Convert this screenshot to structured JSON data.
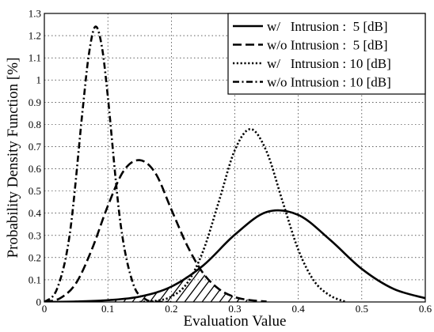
{
  "chart_data": {
    "type": "line",
    "title": "",
    "xlabel": "Evaluation Value",
    "ylabel": "Probability Density Function [%]",
    "xlim": [
      0,
      0.6
    ],
    "ylim": [
      0,
      1.3
    ],
    "xticks": [
      0,
      0.1,
      0.2,
      0.3,
      0.4,
      0.5,
      0.6
    ],
    "yticks": [
      0,
      0.1,
      0.2,
      0.3,
      0.4,
      0.5,
      0.6,
      0.7,
      0.8,
      0.9,
      1.0,
      1.1,
      1.2,
      1.3
    ],
    "xtick_labels": [
      "0",
      "0.1",
      "0.2",
      "0.3",
      "0.4",
      "0.5",
      "0.6"
    ],
    "ytick_labels": [
      "0",
      "0.1",
      "0.2",
      "0.3",
      "0.4",
      "0.5",
      "0.6",
      "0.7",
      "0.8",
      "0.9",
      "1",
      "1.1",
      "1.2",
      "1.3"
    ],
    "grid": true,
    "legend_position": "top-right",
    "hatched_region": "overlap of w/ Intrusion : 5 [dB] and w/o Intrusion : 5 [dB]",
    "series": [
      {
        "name": "w/   Intrusion :  5 [dB]",
        "style": "solid",
        "x": [
          0,
          0.05,
          0.1,
          0.15,
          0.2,
          0.25,
          0.3,
          0.35,
          0.4,
          0.45,
          0.5,
          0.55,
          0.6
        ],
        "y": [
          0.0,
          0.002,
          0.008,
          0.024,
          0.069,
          0.164,
          0.303,
          0.405,
          0.392,
          0.28,
          0.149,
          0.059,
          0.017
        ]
      },
      {
        "name": "w/o Intrusion :  5 [dB]",
        "style": "dashed",
        "x": [
          0,
          0.025,
          0.05,
          0.075,
          0.1,
          0.125,
          0.15,
          0.175,
          0.2,
          0.225,
          0.25,
          0.275,
          0.3,
          0.325,
          0.35
        ],
        "y": [
          0.0,
          0.017,
          0.085,
          0.238,
          0.433,
          0.591,
          0.639,
          0.58,
          0.417,
          0.254,
          0.13,
          0.058,
          0.022,
          0.008,
          0.002
        ]
      },
      {
        "name": "w/   Intrusion : 10 [dB]",
        "style": "dotted",
        "x": [
          0.15,
          0.175,
          0.2,
          0.225,
          0.25,
          0.275,
          0.3,
          0.325,
          0.35,
          0.375,
          0.4,
          0.425,
          0.45,
          0.475
        ],
        "y": [
          0.0,
          0.005,
          0.024,
          0.085,
          0.229,
          0.454,
          0.684,
          0.779,
          0.678,
          0.455,
          0.235,
          0.094,
          0.029,
          0.0
        ]
      },
      {
        "name": "w/o Intrusion : 10 [dB]",
        "style": "dash-dot",
        "x": [
          0,
          0.02,
          0.04,
          0.06,
          0.07,
          0.08,
          0.09,
          0.1,
          0.12,
          0.14,
          0.16,
          0.18,
          0.2
        ],
        "y": [
          0.0,
          0.059,
          0.305,
          0.857,
          1.113,
          1.24,
          1.16,
          0.925,
          0.353,
          0.081,
          0.011,
          0.001,
          0.0
        ]
      }
    ]
  }
}
